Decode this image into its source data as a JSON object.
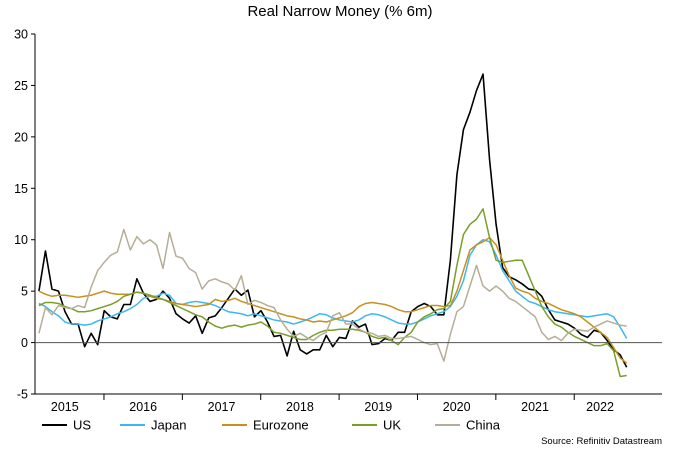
{
  "chart_data": {
    "type": "line",
    "title": "Real Narrow Money (% 6m)",
    "source": "Source: Refinitiv Datastream",
    "ylim": [
      -5,
      30
    ],
    "yticks": [
      -5,
      0,
      5,
      10,
      15,
      20,
      25,
      30
    ],
    "xlim": [
      2014.62,
      2022.62
    ],
    "year_labels": [
      {
        "label": "2015",
        "x": 2015.0
      },
      {
        "label": "2016",
        "x": 2016.0
      },
      {
        "label": "2017",
        "x": 2017.0
      },
      {
        "label": "2018",
        "x": 2018.0
      },
      {
        "label": "2019",
        "x": 2019.0
      },
      {
        "label": "2020",
        "x": 2020.0
      },
      {
        "label": "2021",
        "x": 2021.0
      },
      {
        "label": "2022",
        "x": 2021.83
      }
    ],
    "year_boundaries": [
      2015.5,
      2016.5,
      2017.5,
      2018.5,
      2019.5,
      2020.5,
      2021.5
    ],
    "x_start": 2014.67,
    "x_step": 0.08333,
    "legend_position": "bottom",
    "zero_line": true,
    "series": [
      {
        "name": "US",
        "color": "#000000",
        "values": [
          5.0,
          8.9,
          5.2,
          5.0,
          3.0,
          1.8,
          1.8,
          -0.4,
          0.9,
          -0.2,
          3.1,
          2.5,
          2.3,
          3.7,
          3.7,
          6.2,
          4.8,
          4.0,
          4.2,
          5.0,
          4.3,
          2.8,
          2.3,
          1.9,
          2.6,
          0.9,
          2.4,
          2.6,
          3.4,
          4.3,
          5.2,
          4.6,
          5.1,
          2.5,
          3.1,
          2.0,
          0.6,
          0.7,
          -1.3,
          1.1,
          -0.7,
          -1.1,
          -0.7,
          -0.7,
          0.7,
          -0.4,
          0.5,
          0.4,
          2.1,
          1.5,
          1.8,
          -0.2,
          -0.1,
          0.4,
          0.2,
          1.0,
          1.0,
          3.0,
          3.5,
          3.8,
          3.5,
          2.7,
          2.7,
          8.0,
          16.3,
          20.7,
          22.4,
          24.5,
          26.1,
          17.8,
          11.5,
          7.3,
          6.4,
          6.1,
          5.7,
          5.2,
          5.1,
          4.5,
          3.2,
          2.2,
          2.0,
          1.8,
          1.4,
          0.8,
          0.5,
          1.2,
          1.0,
          0.2,
          -0.7,
          -1.2,
          -2.4
        ]
      },
      {
        "name": "Japan",
        "color": "#3fb6ef",
        "values": [
          3.8,
          3.5,
          3.0,
          2.6,
          2.0,
          1.8,
          1.8,
          1.7,
          1.8,
          2.1,
          2.3,
          2.5,
          2.8,
          3.0,
          3.3,
          3.7,
          4.3,
          4.5,
          4.5,
          4.8,
          4.6,
          3.8,
          3.7,
          3.9,
          4.0,
          3.9,
          3.8,
          3.6,
          3.3,
          3.0,
          2.9,
          2.8,
          2.6,
          2.8,
          2.6,
          2.4,
          2.2,
          2.1,
          2.0,
          1.8,
          2.0,
          2.2,
          2.5,
          2.8,
          2.7,
          2.4,
          2.2,
          2.1,
          2.0,
          2.2,
          2.6,
          2.8,
          2.7,
          2.5,
          2.2,
          1.9,
          1.8,
          1.8,
          2.0,
          2.3,
          2.6,
          2.8,
          3.0,
          3.5,
          4.5,
          6.0,
          8.5,
          9.5,
          10.0,
          9.8,
          8.5,
          7.0,
          6.0,
          5.0,
          4.5,
          4.0,
          3.8,
          3.5,
          3.2,
          3.0,
          2.9,
          2.8,
          2.7,
          2.6,
          2.5,
          2.6,
          2.7,
          2.8,
          2.5,
          1.5,
          0.4
        ]
      },
      {
        "name": "Eurozone",
        "color": "#c8901e",
        "values": [
          5.0,
          4.7,
          4.5,
          4.6,
          4.6,
          4.5,
          4.4,
          4.5,
          4.6,
          4.8,
          5.0,
          4.8,
          4.7,
          4.7,
          4.7,
          4.9,
          4.8,
          4.5,
          4.3,
          4.2,
          4.0,
          3.8,
          3.7,
          3.6,
          3.5,
          3.6,
          3.7,
          4.2,
          4.0,
          4.1,
          4.3,
          4.0,
          3.8,
          3.6,
          3.4,
          3.2,
          3.0,
          2.8,
          2.6,
          2.5,
          2.3,
          2.2,
          2.0,
          2.1,
          2.0,
          2.2,
          2.4,
          2.6,
          2.9,
          3.5,
          3.8,
          3.9,
          3.8,
          3.7,
          3.5,
          3.2,
          3.0,
          3.0,
          3.2,
          3.4,
          3.6,
          3.6,
          3.5,
          3.6,
          5.0,
          7.0,
          9.0,
          9.5,
          9.8,
          10.2,
          9.5,
          8.0,
          6.5,
          5.3,
          5.0,
          4.8,
          4.3,
          4.0,
          3.8,
          3.5,
          3.2,
          3.0,
          2.8,
          2.5,
          2.0,
          1.5,
          1.0,
          0.5,
          -0.5,
          -1.5,
          -2.0
        ]
      },
      {
        "name": "UK",
        "color": "#7a9e2a",
        "values": [
          3.6,
          3.9,
          3.9,
          3.8,
          3.5,
          3.3,
          3.0,
          3.0,
          3.1,
          3.3,
          3.5,
          3.7,
          4.0,
          4.5,
          4.7,
          4.9,
          4.8,
          4.6,
          4.4,
          4.2,
          3.9,
          3.6,
          3.3,
          3.0,
          2.7,
          2.5,
          2.0,
          1.6,
          1.4,
          1.6,
          1.7,
          1.5,
          1.7,
          1.8,
          2.0,
          1.6,
          1.0,
          0.9,
          0.7,
          0.5,
          0.3,
          0.3,
          0.7,
          1.0,
          1.2,
          1.2,
          1.3,
          1.3,
          1.3,
          1.2,
          1.0,
          0.6,
          0.4,
          0.5,
          0.2,
          -0.2,
          0.5,
          1.0,
          2.0,
          2.5,
          2.8,
          3.2,
          3.3,
          4.0,
          7.5,
          10.5,
          11.5,
          12.0,
          13.0,
          10.2,
          8.0,
          7.8,
          7.9,
          8.0,
          8.0,
          6.5,
          5.0,
          3.5,
          2.5,
          1.8,
          1.5,
          1.0,
          0.6,
          0.3,
          0.0,
          -0.3,
          -0.3,
          -0.1,
          -0.8,
          -3.3,
          -3.2
        ]
      },
      {
        "name": "China",
        "color": "#b5ae97",
        "values": [
          0.9,
          3.4,
          2.7,
          3.6,
          3.4,
          3.3,
          3.6,
          3.4,
          5.4,
          7.0,
          7.8,
          8.5,
          8.8,
          11.0,
          9.0,
          10.3,
          9.6,
          10.0,
          9.5,
          7.2,
          10.7,
          8.4,
          8.2,
          7.2,
          6.8,
          5.2,
          6.0,
          6.2,
          5.9,
          5.7,
          5.1,
          6.5,
          3.7,
          4.1,
          3.9,
          3.6,
          3.4,
          2.2,
          1.3,
          0.6,
          0.9,
          0.5,
          0.2,
          0.7,
          1.0,
          2.6,
          2.9,
          1.8,
          1.8,
          1.3,
          1.0,
          0.9,
          0.6,
          0.7,
          0.4,
          0.4,
          0.5,
          0.6,
          0.3,
          0.0,
          -0.2,
          -0.1,
          -1.8,
          0.8,
          3.0,
          3.5,
          5.5,
          7.5,
          5.5,
          5.0,
          5.5,
          5.0,
          4.3,
          4.0,
          3.5,
          3.0,
          2.5,
          1.0,
          0.3,
          0.6,
          0.2,
          0.9,
          1.3,
          1.2,
          1.1,
          1.5,
          1.8,
          2.1,
          1.9,
          1.7,
          1.6
        ]
      }
    ]
  }
}
